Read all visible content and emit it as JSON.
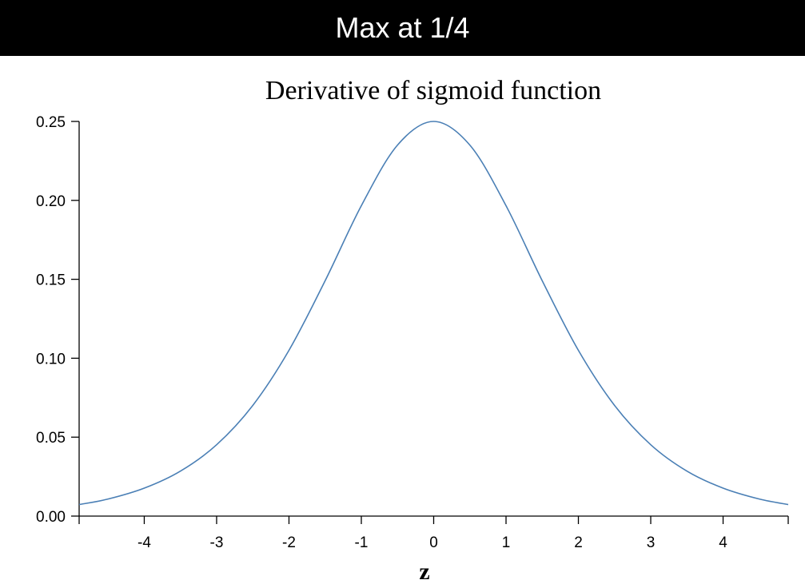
{
  "banner": {
    "title": "Max at 1/4"
  },
  "chart_data": {
    "type": "line",
    "title": "Derivative of sigmoid function",
    "xlabel": "z",
    "ylabel": "",
    "xlim": [
      -4.9,
      4.9
    ],
    "ylim": [
      0.0,
      0.25
    ],
    "x_ticks": [
      -4,
      -3,
      -2,
      -1,
      0,
      1,
      2,
      3,
      4
    ],
    "y_ticks": [
      "0.00",
      "0.05",
      "0.10",
      "0.15",
      "0.20",
      "0.25"
    ],
    "grid": false,
    "series": [
      {
        "color": "#4a7fb5",
        "x": [
          -4.9,
          -4.5,
          -4.0,
          -3.5,
          -3.0,
          -2.5,
          -2.0,
          -1.5,
          -1.0,
          -0.5,
          0.0,
          0.5,
          1.0,
          1.5,
          2.0,
          2.5,
          3.0,
          3.5,
          4.0,
          4.5,
          4.9
        ],
        "y": [
          0.0073,
          0.0108,
          0.0177,
          0.0285,
          0.0452,
          0.0701,
          0.105,
          0.1491,
          0.1966,
          0.235,
          0.25,
          0.235,
          0.1966,
          0.1491,
          0.105,
          0.0701,
          0.0452,
          0.0285,
          0.0177,
          0.0108,
          0.0073
        ]
      }
    ]
  }
}
